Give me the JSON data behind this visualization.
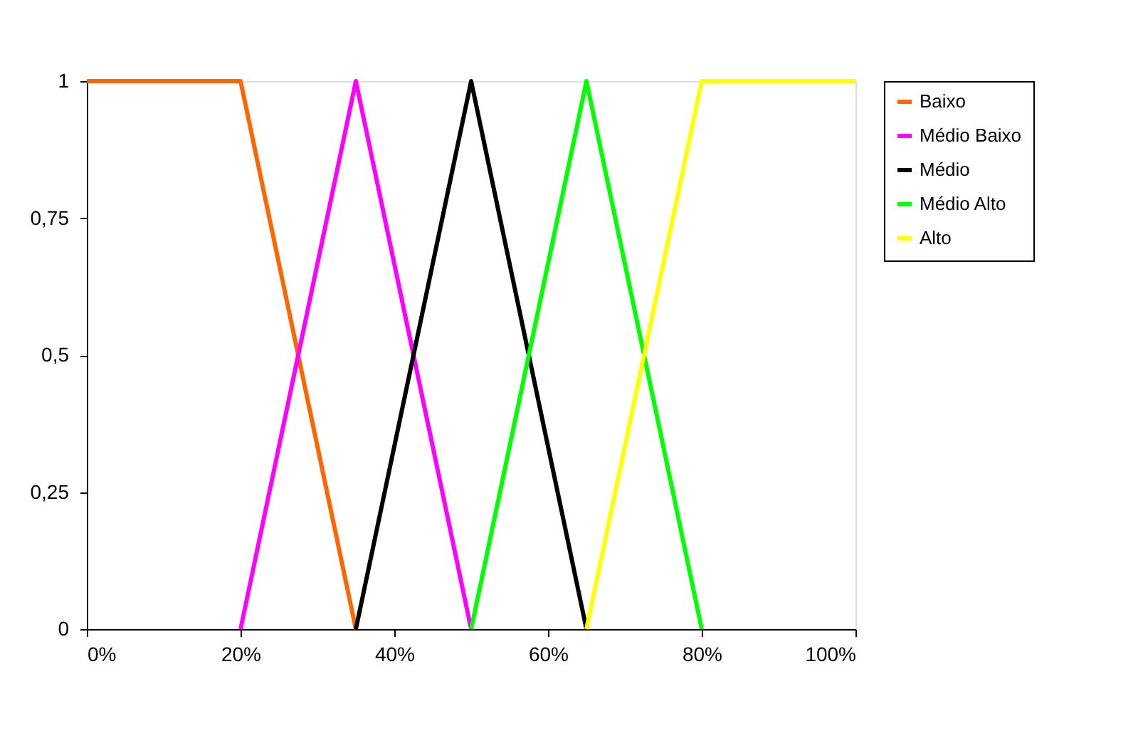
{
  "chart_data": {
    "type": "line",
    "xlim": [
      0,
      100
    ],
    "ylim": [
      0,
      1
    ],
    "xticks": [
      {
        "value": 0,
        "label": "0%"
      },
      {
        "value": 20,
        "label": "20%"
      },
      {
        "value": 40,
        "label": "40%"
      },
      {
        "value": 60,
        "label": "60%"
      },
      {
        "value": 80,
        "label": "80%"
      },
      {
        "value": 100,
        "label": "100%"
      }
    ],
    "yticks": [
      0,
      {
        "value": 0.25,
        "label": "0,25"
      },
      {
        "value": 0.5,
        "label": "0,5"
      },
      {
        "value": 0.75,
        "label": "0,75"
      },
      1
    ],
    "grid": false,
    "legend": "right",
    "marker": "none",
    "line_style": "solid",
    "series": [
      {
        "name": "Baixo",
        "color": "#ff6600",
        "x": [
          0,
          20,
          35
        ],
        "values": [
          1,
          1,
          0
        ]
      },
      {
        "name": "Médio Baixo",
        "color": "#ff00ff",
        "x": [
          20,
          35,
          50
        ],
        "values": [
          0,
          1,
          0
        ]
      },
      {
        "name": "Médio",
        "color": "#000000",
        "x": [
          35,
          50,
          65
        ],
        "values": [
          0,
          1,
          0
        ]
      },
      {
        "name": "Médio Alto",
        "color": "#00ff00",
        "x": [
          50,
          65,
          80
        ],
        "values": [
          0,
          1,
          0
        ]
      },
      {
        "name": "Alto",
        "color": "#ffff00",
        "x": [
          65,
          80,
          100
        ],
        "values": [
          0,
          1,
          1
        ]
      }
    ]
  }
}
